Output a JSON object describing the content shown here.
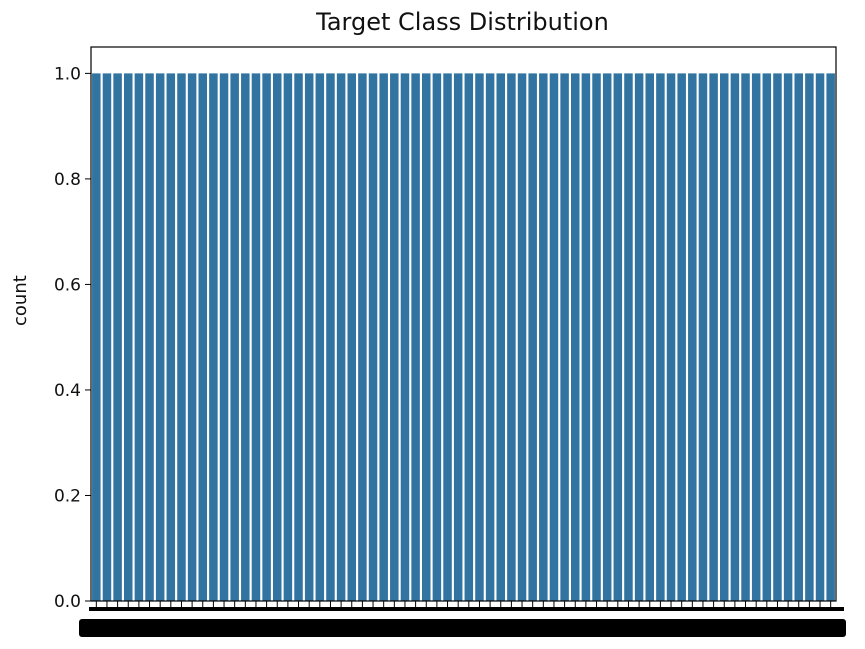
{
  "chart_data": {
    "type": "bar",
    "title": "Target Class Distribution",
    "xlabel": "",
    "ylabel": "count",
    "ylim": [
      0,
      1.05
    ],
    "yticks": [
      "0.0",
      "0.2",
      "0.4",
      "0.6",
      "0.8",
      "1.0"
    ],
    "ytick_values": [
      0,
      0.2,
      0.4,
      0.6,
      0.8,
      1.0
    ],
    "bar_color": "#3274a1",
    "category_count": 70,
    "bar_value": 1,
    "xtick_labels_overlap_illegible": true,
    "grid": false
  }
}
